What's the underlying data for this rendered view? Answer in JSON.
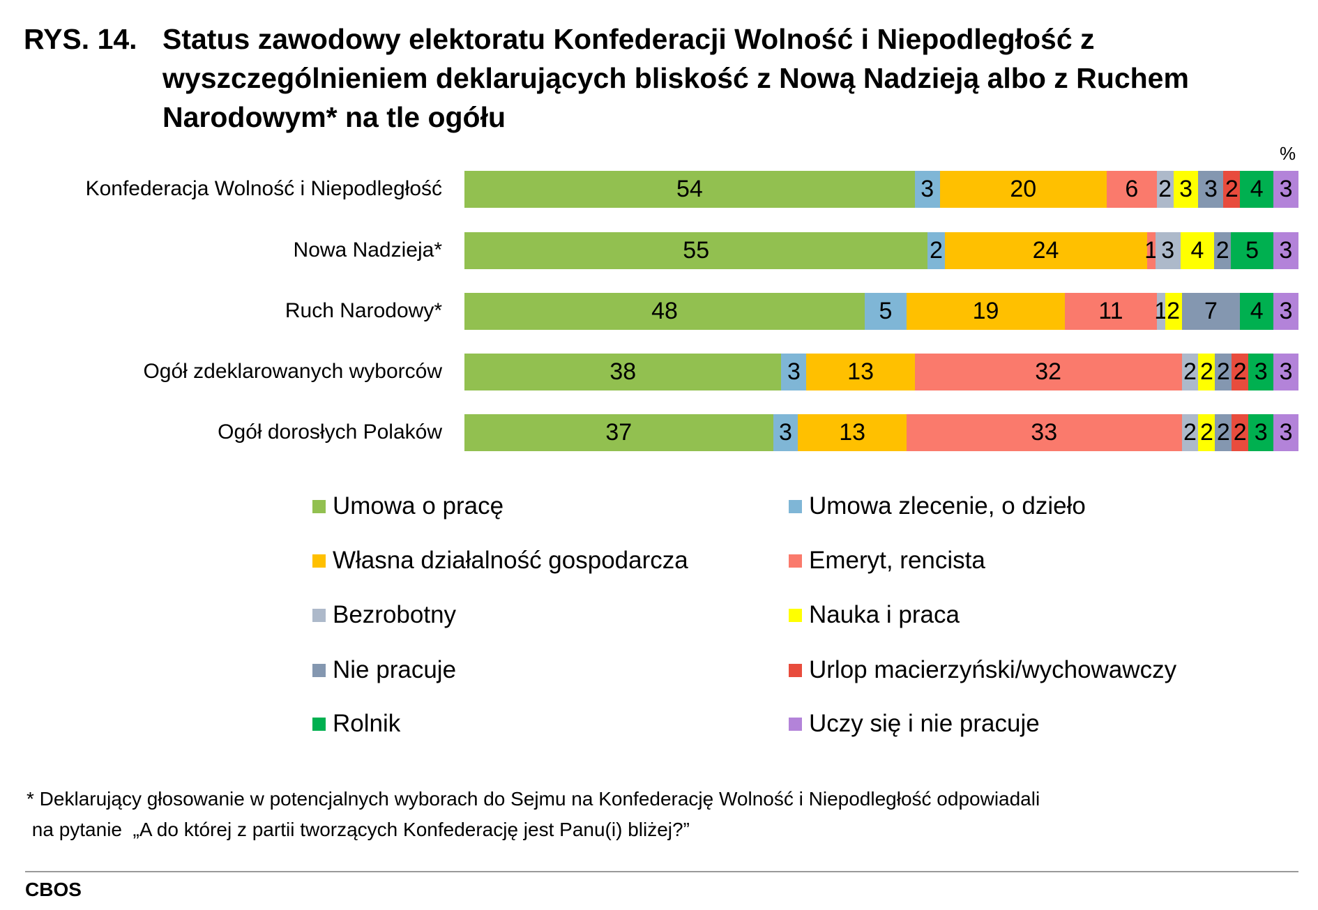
{
  "figure_label": "RYS. 14.",
  "chart_data": {
    "type": "bar",
    "orientation": "horizontal",
    "stacked": true,
    "title": "Status zawodowy elektoratu Konfederacji Wolność i Niepodległość z wyszczególnieniem deklarujących bliskość z Nową Nadzieją albo z Ruchem Narodowym* na tle ogółu",
    "unit": "%",
    "categories": [
      "Konfederacja Wolność i Niepodległość",
      "Nowa Nadzieja*",
      "Ruch Narodowy*",
      "Ogół zdeklarowanych wyborców",
      "Ogół dorosłych Polaków"
    ],
    "series": [
      {
        "name": "Umowa o pracę",
        "color": "#92c050",
        "values": [
          54,
          55,
          48,
          38,
          37
        ]
      },
      {
        "name": "Umowa zlecenie, o dzieło",
        "color": "#7fb6d6",
        "values": [
          3,
          2,
          5,
          3,
          3
        ]
      },
      {
        "name": "Własna działalność gospodarcza",
        "color": "#ffc000",
        "values": [
          20,
          24,
          19,
          13,
          13
        ]
      },
      {
        "name": "Emeryt, rencista",
        "color": "#fa7a6c",
        "values": [
          6,
          1,
          11,
          32,
          33
        ]
      },
      {
        "name": "Bezrobotny",
        "color": "#adb9ca",
        "values": [
          2,
          3,
          1,
          2,
          2
        ]
      },
      {
        "name": "Nauka i praca",
        "color": "#ffff00",
        "values": [
          3,
          4,
          2,
          2,
          2
        ]
      },
      {
        "name": "Nie pracuje",
        "color": "#8497b0",
        "values": [
          3,
          2,
          7,
          2,
          2
        ]
      },
      {
        "name": "Urlop macierzyński/wychowawczy",
        "color": "#e84c3d",
        "values": [
          2,
          0,
          0,
          2,
          2
        ]
      },
      {
        "name": "Rolnik",
        "color": "#00b050",
        "values": [
          4,
          5,
          4,
          3,
          3
        ]
      },
      {
        "name": "Uczy się i nie pracuje",
        "color": "#b383d9",
        "values": [
          3,
          3,
          3,
          3,
          3
        ]
      }
    ],
    "legend": "bottom"
  },
  "footnote": [
    "* Deklarujący głosowanie w potencjalnych wyborach do Sejmu na Konfederację Wolność i Niepodległość odpowiadali",
    " na pytanie  „A do której z partii tworzących Konfederację jest Panu(i) bliżej?”"
  ],
  "source": "CBOS"
}
